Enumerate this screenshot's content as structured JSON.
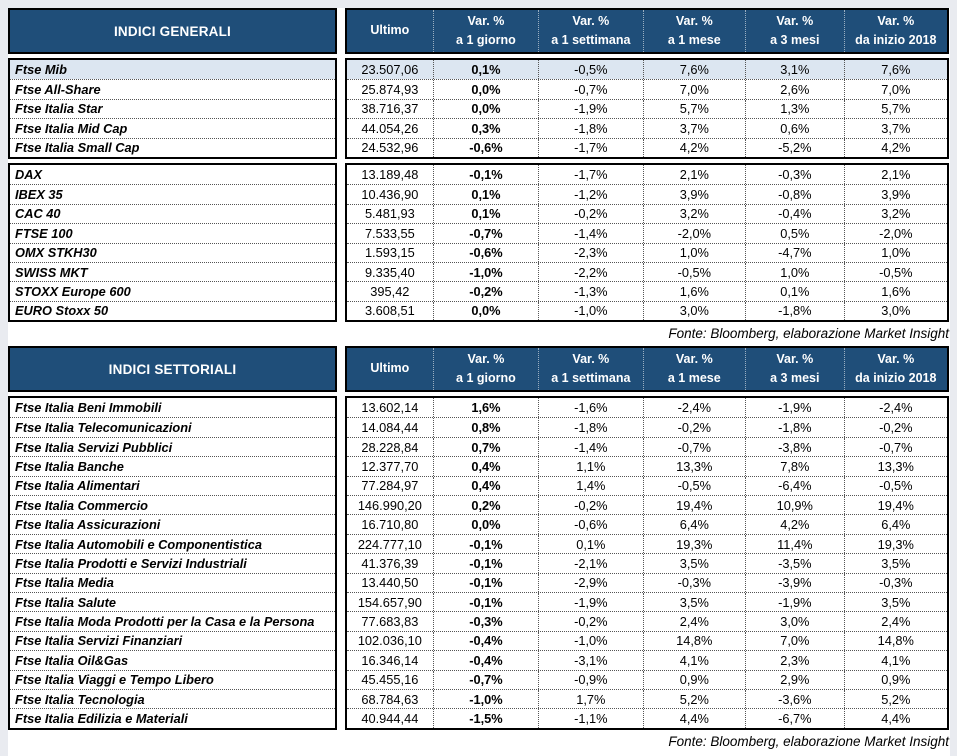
{
  "colors": {
    "header_bg": "#1F4E79",
    "header_text": "#FFFFFF",
    "highlight_row_bg": "#DCE6F1",
    "page_frame": "#E9EBF0",
    "border": "#000000"
  },
  "tables": [
    {
      "title": "INDICI GENERALI",
      "source": "Fonte: Bloomberg, elaborazione Market Insight",
      "columns": [
        {
          "top": "Ultimo",
          "bottom": ""
        },
        {
          "top": "Var. %",
          "bottom": "a 1 giorno"
        },
        {
          "top": "Var. %",
          "bottom": "a 1 settimana"
        },
        {
          "top": "Var. %",
          "bottom": "a 1 mese"
        },
        {
          "top": "Var. %",
          "bottom": "a 3 mesi"
        },
        {
          "top": "Var. %",
          "bottom": "da inizio 2018"
        }
      ],
      "groups": [
        {
          "rows": [
            {
              "name": "Ftse Mib",
              "values": [
                "23.507,06",
                "0,1%",
                "-0,5%",
                "7,6%",
                "3,1%",
                "7,6%"
              ],
              "highlight": true
            },
            {
              "name": "Ftse All-Share",
              "values": [
                "25.874,93",
                "0,0%",
                "-0,7%",
                "7,0%",
                "2,6%",
                "7,0%"
              ]
            },
            {
              "name": "Ftse Italia Star",
              "values": [
                "38.716,37",
                "0,0%",
                "-1,9%",
                "5,7%",
                "1,3%",
                "5,7%"
              ]
            },
            {
              "name": "Ftse Italia Mid Cap",
              "values": [
                "44.054,26",
                "0,3%",
                "-1,8%",
                "3,7%",
                "0,6%",
                "3,7%"
              ]
            },
            {
              "name": "Ftse Italia Small Cap",
              "values": [
                "24.532,96",
                "-0,6%",
                "-1,7%",
                "4,2%",
                "-5,2%",
                "4,2%"
              ]
            }
          ]
        },
        {
          "rows": [
            {
              "name": "DAX",
              "values": [
                "13.189,48",
                "-0,1%",
                "-1,7%",
                "2,1%",
                "-0,3%",
                "2,1%"
              ]
            },
            {
              "name": "IBEX 35",
              "values": [
                "10.436,90",
                "0,1%",
                "-1,2%",
                "3,9%",
                "-0,8%",
                "3,9%"
              ]
            },
            {
              "name": "CAC 40",
              "values": [
                "5.481,93",
                "0,1%",
                "-0,2%",
                "3,2%",
                "-0,4%",
                "3,2%"
              ]
            },
            {
              "name": "FTSE 100",
              "values": [
                "7.533,55",
                "-0,7%",
                "-1,4%",
                "-2,0%",
                "0,5%",
                "-2,0%"
              ]
            },
            {
              "name": "OMX STKH30",
              "values": [
                "1.593,15",
                "-0,6%",
                "-2,3%",
                "1,0%",
                "-4,7%",
                "1,0%"
              ]
            },
            {
              "name": "SWISS MKT",
              "values": [
                "9.335,40",
                "-1,0%",
                "-2,2%",
                "-0,5%",
                "1,0%",
                "-0,5%"
              ]
            },
            {
              "name": "STOXX Europe 600",
              "values": [
                "395,42",
                "-0,2%",
                "-1,3%",
                "1,6%",
                "0,1%",
                "1,6%"
              ]
            },
            {
              "name": "EURO Stoxx 50",
              "values": [
                "3.608,51",
                "0,0%",
                "-1,0%",
                "3,0%",
                "-1,8%",
                "3,0%"
              ]
            }
          ]
        }
      ]
    },
    {
      "title": "INDICI SETTORIALI",
      "source": "Fonte: Bloomberg, elaborazione Market Insight",
      "columns": [
        {
          "top": "Ultimo",
          "bottom": ""
        },
        {
          "top": "Var. %",
          "bottom": "a 1 giorno"
        },
        {
          "top": "Var. %",
          "bottom": "a 1 settimana"
        },
        {
          "top": "Var. %",
          "bottom": "a 1 mese"
        },
        {
          "top": "Var. %",
          "bottom": "a 3 mesi"
        },
        {
          "top": "Var. %",
          "bottom": "da inizio 2018"
        }
      ],
      "groups": [
        {
          "rows": [
            {
              "name": "Ftse Italia Beni Immobili",
              "values": [
                "13.602,14",
                "1,6%",
                "-1,6%",
                "-2,4%",
                "-1,9%",
                "-2,4%"
              ]
            },
            {
              "name": "Ftse Italia Telecomunicazioni",
              "values": [
                "14.084,44",
                "0,8%",
                "-1,8%",
                "-0,2%",
                "-1,8%",
                "-0,2%"
              ]
            },
            {
              "name": "Ftse Italia Servizi Pubblici",
              "values": [
                "28.228,84",
                "0,7%",
                "-1,4%",
                "-0,7%",
                "-3,8%",
                "-0,7%"
              ]
            },
            {
              "name": "Ftse Italia Banche",
              "values": [
                "12.377,70",
                "0,4%",
                "1,1%",
                "13,3%",
                "7,8%",
                "13,3%"
              ]
            },
            {
              "name": "Ftse Italia Alimentari",
              "values": [
                "77.284,97",
                "0,4%",
                "1,4%",
                "-0,5%",
                "-6,4%",
                "-0,5%"
              ]
            },
            {
              "name": "Ftse Italia Commercio",
              "values": [
                "146.990,20",
                "0,2%",
                "-0,2%",
                "19,4%",
                "10,9%",
                "19,4%"
              ]
            },
            {
              "name": "Ftse Italia Assicurazioni",
              "values": [
                "16.710,80",
                "0,0%",
                "-0,6%",
                "6,4%",
                "4,2%",
                "6,4%"
              ]
            },
            {
              "name": "Ftse Italia Automobili e Componentistica",
              "values": [
                "224.777,10",
                "-0,1%",
                "0,1%",
                "19,3%",
                "11,4%",
                "19,3%"
              ]
            },
            {
              "name": "Ftse Italia Prodotti e Servizi Industriali",
              "values": [
                "41.376,39",
                "-0,1%",
                "-2,1%",
                "3,5%",
                "-3,5%",
                "3,5%"
              ]
            },
            {
              "name": "Ftse Italia Media",
              "values": [
                "13.440,50",
                "-0,1%",
                "-2,9%",
                "-0,3%",
                "-3,9%",
                "-0,3%"
              ]
            },
            {
              "name": "Ftse Italia Salute",
              "values": [
                "154.657,90",
                "-0,1%",
                "-1,9%",
                "3,5%",
                "-1,9%",
                "3,5%"
              ]
            },
            {
              "name": "Ftse Italia Moda Prodotti per la Casa e la Persona",
              "values": [
                "77.683,83",
                "-0,3%",
                "-0,2%",
                "2,4%",
                "3,0%",
                "2,4%"
              ]
            },
            {
              "name": "Ftse Italia Servizi Finanziari",
              "values": [
                "102.036,10",
                "-0,4%",
                "-1,0%",
                "14,8%",
                "7,0%",
                "14,8%"
              ]
            },
            {
              "name": "Ftse Italia Oil&Gas",
              "values": [
                "16.346,14",
                "-0,4%",
                "-3,1%",
                "4,1%",
                "2,3%",
                "4,1%"
              ]
            },
            {
              "name": "Ftse Italia Viaggi e Tempo Libero",
              "values": [
                "45.455,16",
                "-0,7%",
                "-0,9%",
                "0,9%",
                "2,9%",
                "0,9%"
              ]
            },
            {
              "name": "Ftse Italia Tecnologia",
              "values": [
                "68.784,63",
                "-1,0%",
                "1,7%",
                "5,2%",
                "-3,6%",
                "5,2%"
              ]
            },
            {
              "name": "Ftse Italia Edilizia e Materiali",
              "values": [
                "40.944,44",
                "-1,5%",
                "-1,1%",
                "4,4%",
                "-6,7%",
                "4,4%"
              ]
            }
          ]
        }
      ]
    }
  ]
}
